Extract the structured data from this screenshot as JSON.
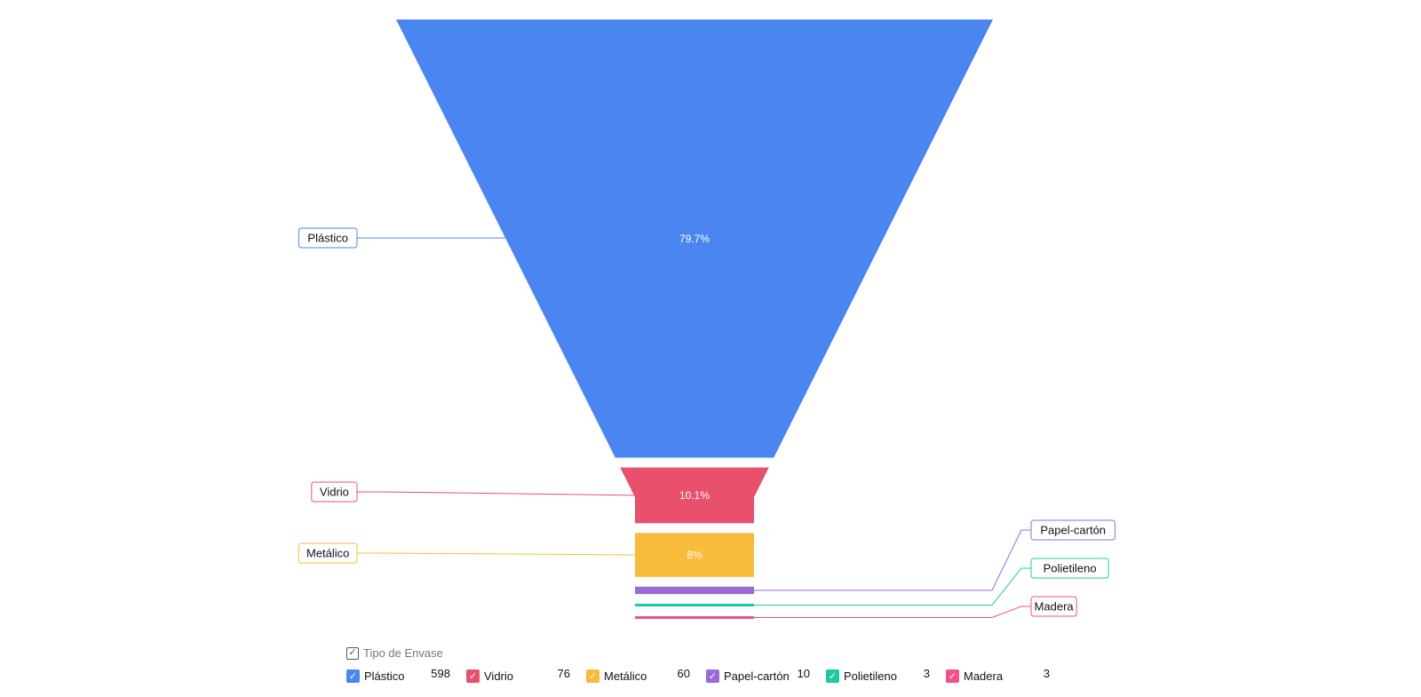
{
  "chart_data": {
    "type": "funnel",
    "legend_title": "Tipo de Envase",
    "check_glyph": "✓",
    "categories": [
      "Plástico",
      "Vidrio",
      "Metálico",
      "Papel-cartón",
      "Polietileno",
      "Madera"
    ],
    "values": [
      598,
      76,
      60,
      10,
      3,
      3
    ],
    "percent_labels": [
      "79.7%",
      "10.1%",
      "8%",
      "",
      "",
      ""
    ],
    "colors": [
      "#4b86f0",
      "#e8506d",
      "#f8bb3c",
      "#9a6ad6",
      "#1ec8a5",
      "#f0508c"
    ],
    "legend_placement": "bottom"
  }
}
